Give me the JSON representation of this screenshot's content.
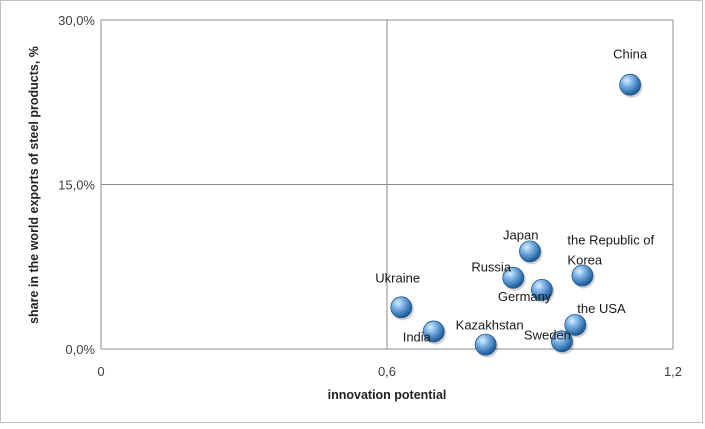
{
  "chart_data": {
    "type": "scatter",
    "xlabel": "innovation potential",
    "ylabel": "share in the world exports of steel products, %",
    "xlim": [
      0,
      1.2
    ],
    "ylim": [
      0,
      30
    ],
    "x_ticks": [
      {
        "value": 0,
        "label": "0"
      },
      {
        "value": 0.6,
        "label": "0,6"
      },
      {
        "value": 1.2,
        "label": "1,2"
      }
    ],
    "y_ticks": [
      {
        "value": 0,
        "label": "0,0%"
      },
      {
        "value": 15,
        "label": "15,0%"
      },
      {
        "value": 30,
        "label": "30,0%"
      }
    ],
    "grid": true,
    "legend": "none",
    "marker_color": "#4a8fd0",
    "points": [
      {
        "label": "China",
        "label_lines": [
          "China"
        ],
        "x": 1.11,
        "y": 24.1,
        "anchor": "start",
        "dx": -17,
        "dy": -26
      },
      {
        "label": "Japan",
        "label_lines": [
          "Japan"
        ],
        "x": 0.9,
        "y": 8.9,
        "anchor": "start",
        "dx": -27,
        "dy": -12
      },
      {
        "label": "the Republic of Korea",
        "label_lines": [
          "the Republic of",
          "Korea"
        ],
        "x": 1.01,
        "y": 6.7,
        "anchor": "start",
        "dx": -15,
        "dy": -31
      },
      {
        "label": "Russia",
        "label_lines": [
          "Russia"
        ],
        "x": 0.865,
        "y": 6.5,
        "anchor": "start",
        "dx": -42,
        "dy": -6
      },
      {
        "label": "Germany",
        "label_lines": [
          "Germany"
        ],
        "x": 0.925,
        "y": 5.4,
        "anchor": "start",
        "dx": -44,
        "dy": 11
      },
      {
        "label": "Ukraine",
        "label_lines": [
          "Ukraine"
        ],
        "x": 0.63,
        "y": 3.8,
        "anchor": "start",
        "dx": -26,
        "dy": -25
      },
      {
        "label": "the USA",
        "label_lines": [
          "the USA"
        ],
        "x": 0.995,
        "y": 2.2,
        "anchor": "start",
        "dx": 2,
        "dy": -12
      },
      {
        "label": "India",
        "label_lines": [
          "India"
        ],
        "x": 0.698,
        "y": 1.6,
        "anchor": "start",
        "dx": -31,
        "dy": 10
      },
      {
        "label": "Kazakhstan",
        "label_lines": [
          "Kazakhstan"
        ],
        "x": 0.807,
        "y": 0.4,
        "anchor": "start",
        "dx": -30,
        "dy": -15
      },
      {
        "label": "Sweden",
        "label_lines": [
          "Sweden"
        ],
        "x": 0.967,
        "y": 0.7,
        "anchor": "start",
        "dx": -38,
        "dy": -2
      }
    ]
  }
}
